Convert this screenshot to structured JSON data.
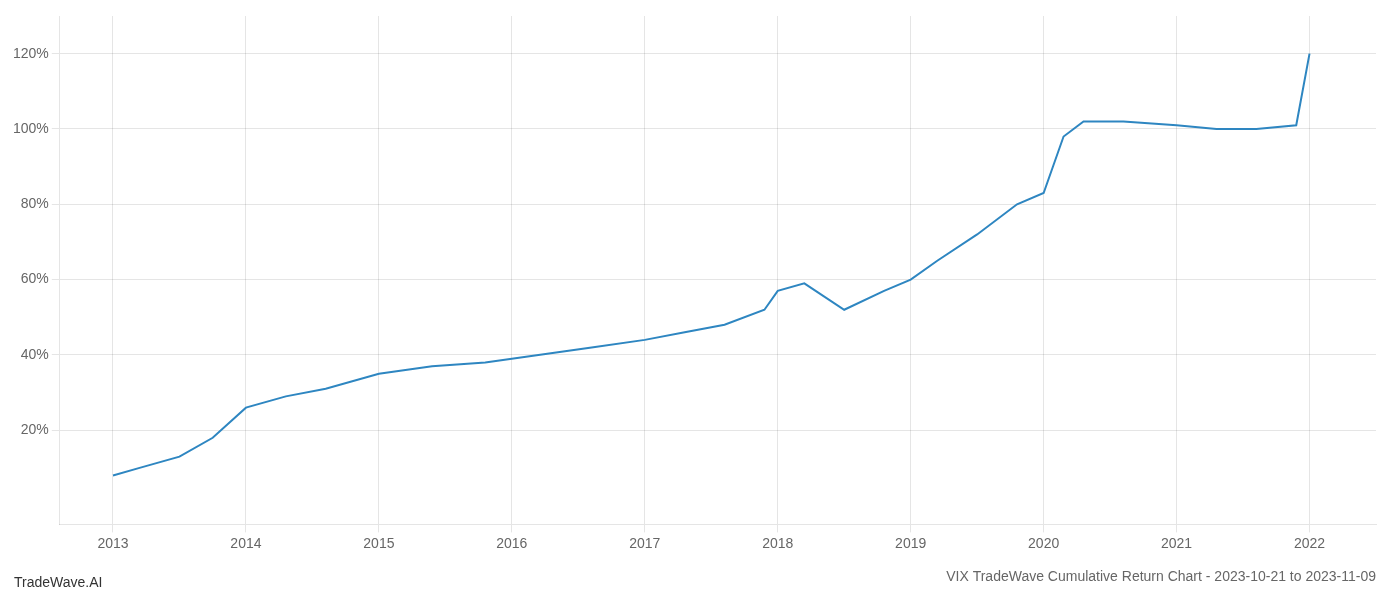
{
  "chart_data": {
    "type": "line",
    "title": "VIX TradeWave Cumulative Return Chart - 2023-10-21 to 2023-11-09",
    "annotations": [
      "TradeWave.AI"
    ],
    "x": [
      2013.0,
      2013.2,
      2013.5,
      2013.75,
      2014.0,
      2014.3,
      2014.6,
      2015.0,
      2015.4,
      2015.8,
      2016.2,
      2016.6,
      2017.0,
      2017.3,
      2017.6,
      2017.9,
      2018.0,
      2018.2,
      2018.5,
      2018.8,
      2019.0,
      2019.2,
      2019.5,
      2019.8,
      2020.0,
      2020.15,
      2020.3,
      2020.6,
      2021.0,
      2021.3,
      2021.6,
      2021.9,
      2022.0
    ],
    "values": [
      8,
      10,
      13,
      18,
      26,
      29,
      31,
      35,
      37,
      38,
      40,
      42,
      44,
      46,
      48,
      52,
      57,
      59,
      52,
      57,
      60,
      65,
      72,
      80,
      83,
      98,
      102,
      102,
      101,
      100,
      100,
      101,
      120
    ],
    "color": "#2e86c1",
    "xlim": [
      2012.6,
      2022.5
    ],
    "ylim": [
      -5,
      130
    ],
    "xticks": [
      2013,
      2014,
      2015,
      2016,
      2017,
      2018,
      2019,
      2020,
      2021,
      2022
    ],
    "yticks": [
      {
        "value": 20,
        "label": "20%"
      },
      {
        "value": 40,
        "label": "40%"
      },
      {
        "value": 60,
        "label": "60%"
      },
      {
        "value": 80,
        "label": "80%"
      },
      {
        "value": 100,
        "label": "100%"
      },
      {
        "value": 120,
        "label": "120%"
      }
    ],
    "grid": true
  }
}
